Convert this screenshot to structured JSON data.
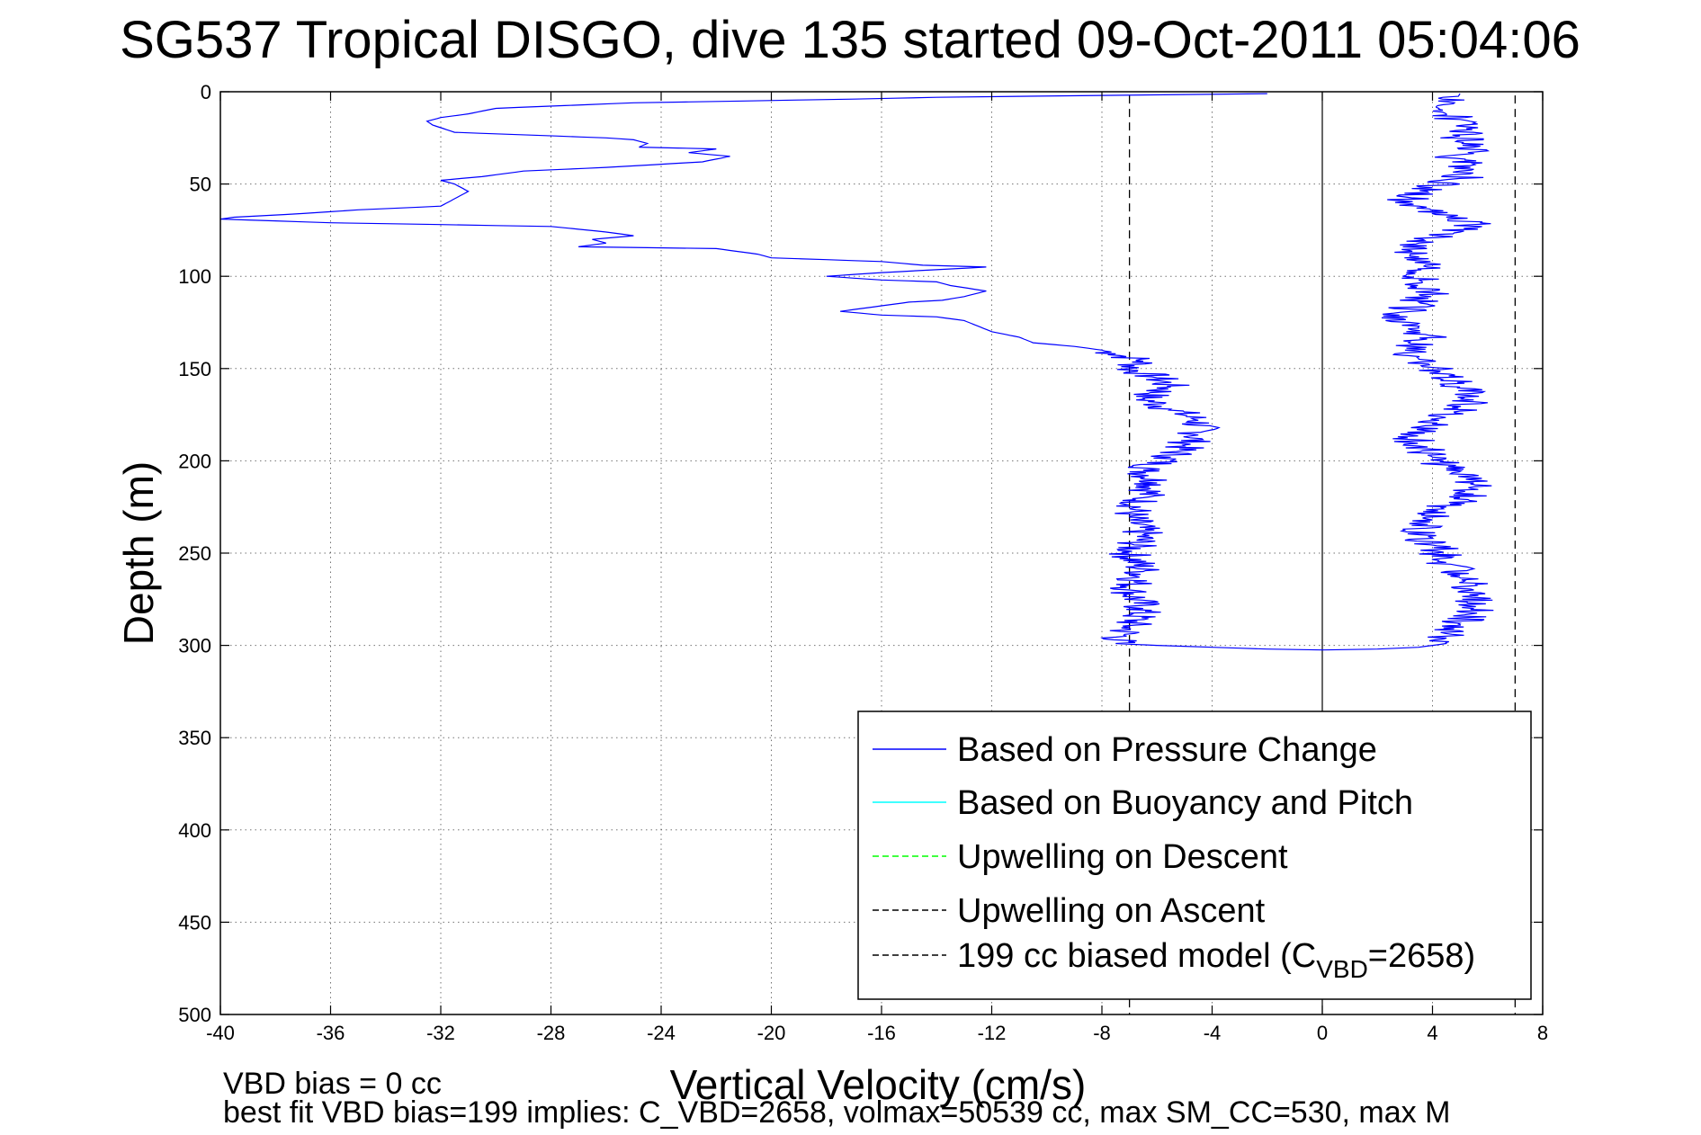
{
  "chart_data": {
    "type": "line",
    "title": "SG537 Tropical DISGO, dive 135 started 09-Oct-2011 05:04:06",
    "xlabel": "Vertical Velocity (cm/s)",
    "ylabel": "Depth (m)",
    "xlim": [
      -40,
      8
    ],
    "ylim": [
      0,
      500
    ],
    "y_reversed": true,
    "grid": true,
    "x_ticks": [
      -40,
      -36,
      -32,
      -28,
      -24,
      -20,
      -16,
      -12,
      -8,
      -4,
      0,
      4,
      8
    ],
    "y_ticks": [
      0,
      50,
      100,
      150,
      200,
      250,
      300,
      350,
      400,
      450,
      500
    ],
    "legend_position": "bottom-right",
    "series": [
      {
        "name": "Based on Pressure Change",
        "color": "#0000ff",
        "style": "solid",
        "descent": [
          [
            -2,
            1
          ],
          [
            -14,
            3
          ],
          [
            -17,
            4
          ],
          [
            -25,
            6
          ],
          [
            -30,
            9
          ],
          [
            -31,
            12
          ],
          [
            -32,
            14
          ],
          [
            -32.5,
            16
          ],
          [
            -32.3,
            18
          ],
          [
            -31.5,
            22
          ],
          [
            -26,
            25
          ],
          [
            -25,
            26
          ],
          [
            -24.5,
            28
          ],
          [
            -24.8,
            30
          ],
          [
            -22,
            31
          ],
          [
            -23,
            33
          ],
          [
            -21.5,
            35
          ],
          [
            -22.5,
            38
          ],
          [
            -26,
            41
          ],
          [
            -29,
            43
          ],
          [
            -30.5,
            46
          ],
          [
            -32,
            48
          ],
          [
            -31.5,
            50
          ],
          [
            -31,
            54
          ],
          [
            -31.5,
            58
          ],
          [
            -32,
            62
          ],
          [
            -35,
            64
          ],
          [
            -37,
            66
          ],
          [
            -39.5,
            68
          ],
          [
            -40,
            69
          ],
          [
            -36,
            71
          ],
          [
            -32,
            72
          ],
          [
            -28,
            73
          ],
          [
            -26,
            76
          ],
          [
            -25,
            78
          ],
          [
            -26.5,
            80
          ],
          [
            -26,
            82
          ],
          [
            -27,
            84
          ],
          [
            -22,
            85
          ],
          [
            -20.5,
            88
          ],
          [
            -20,
            90
          ],
          [
            -16,
            92
          ],
          [
            -14.5,
            94
          ],
          [
            -12.2,
            95
          ],
          [
            -16,
            98
          ],
          [
            -18,
            100
          ],
          [
            -16,
            102
          ],
          [
            -14,
            103
          ],
          [
            -13.5,
            105
          ],
          [
            -12.2,
            108
          ],
          [
            -13,
            111
          ],
          [
            -13.8,
            113
          ],
          [
            -15,
            114
          ],
          [
            -16,
            116
          ],
          [
            -17.5,
            119
          ],
          [
            -16,
            121
          ],
          [
            -14,
            122
          ],
          [
            -13,
            124
          ],
          [
            -12.5,
            127
          ],
          [
            -12,
            130
          ],
          [
            -11,
            133
          ],
          [
            -10.5,
            136
          ],
          [
            -9,
            138
          ],
          [
            -8,
            140
          ],
          [
            -7.5,
            142
          ],
          [
            -6.5,
            146
          ],
          [
            -7,
            150
          ],
          [
            -6,
            155
          ],
          [
            -5.5,
            160
          ],
          [
            -6.5,
            166
          ],
          [
            -5.5,
            172
          ],
          [
            -4.5,
            178
          ],
          [
            -4.5,
            186
          ],
          [
            -5,
            192
          ],
          [
            -5.5,
            198
          ],
          [
            -6.5,
            205
          ],
          [
            -6,
            212
          ],
          [
            -6.5,
            220
          ],
          [
            -7,
            230
          ],
          [
            -6.5,
            240
          ],
          [
            -7,
            250
          ],
          [
            -6.5,
            260
          ],
          [
            -7,
            270
          ],
          [
            -6.5,
            280
          ],
          [
            -7,
            290
          ],
          [
            -7.5,
            299
          ],
          [
            -6,
            300
          ],
          [
            -4,
            301
          ],
          [
            -2,
            302
          ],
          [
            0,
            302.5
          ]
        ],
        "ascent": [
          [
            0,
            302.5
          ],
          [
            2,
            302
          ],
          [
            3.5,
            301
          ],
          [
            4.5,
            299
          ],
          [
            4.5,
            295
          ],
          [
            5,
            288
          ],
          [
            5.5,
            280
          ],
          [
            5.5,
            270
          ],
          [
            5,
            262
          ],
          [
            4.5,
            255
          ],
          [
            4.2,
            248
          ],
          [
            3.5,
            240
          ],
          [
            4,
            232
          ],
          [
            4.5,
            225
          ],
          [
            5.5,
            218
          ],
          [
            5.5,
            212
          ],
          [
            4.5,
            205
          ],
          [
            4,
            198
          ],
          [
            3.5,
            192
          ],
          [
            3.2,
            186
          ],
          [
            4,
            180
          ],
          [
            4.8,
            174
          ],
          [
            5.5,
            168
          ],
          [
            5,
            160
          ],
          [
            4.2,
            152
          ],
          [
            3.5,
            145
          ],
          [
            3,
            140
          ],
          [
            3.8,
            134
          ],
          [
            3.5,
            128
          ],
          [
            2.8,
            121
          ],
          [
            3.5,
            114
          ],
          [
            4,
            108
          ],
          [
            3.5,
            102
          ],
          [
            3.8,
            95
          ],
          [
            3.2,
            88
          ],
          [
            3.5,
            82
          ],
          [
            5,
            76
          ],
          [
            5.5,
            72
          ],
          [
            4.5,
            68
          ],
          [
            3.5,
            62
          ],
          [
            3,
            57
          ],
          [
            4,
            52
          ],
          [
            5,
            47
          ],
          [
            5.5,
            42
          ],
          [
            4.8,
            36
          ],
          [
            5.5,
            30
          ],
          [
            5,
            24
          ],
          [
            5.2,
            18
          ],
          [
            4.5,
            12
          ],
          [
            4.8,
            6
          ],
          [
            5,
            1
          ]
        ]
      },
      {
        "name": "Based on Buoyancy and Pitch",
        "color": "#00ffff",
        "style": "solid"
      },
      {
        "name": "Upwelling on Descent",
        "color": "#00ff00",
        "style": "dashed"
      },
      {
        "name": "Upwelling on Ascent",
        "color": "#000000",
        "style": "dashed"
      },
      {
        "name": "199 cc biased model",
        "name_parts": [
          "199 cc biased model (C",
          "VBD",
          "=2658)"
        ],
        "color": "#000000",
        "style": "dashed",
        "x_values": [
          -7,
          7
        ],
        "ylim": [
          2,
          500
        ]
      }
    ],
    "zero_line": {
      "x": 0,
      "color": "#000000"
    },
    "annotations": [
      "VBD bias = 0 cc",
      "best fit VBD bias=199 implies: C_VBD=2658, volmax=50539 cc, max SM_CC=530, max M"
    ]
  }
}
